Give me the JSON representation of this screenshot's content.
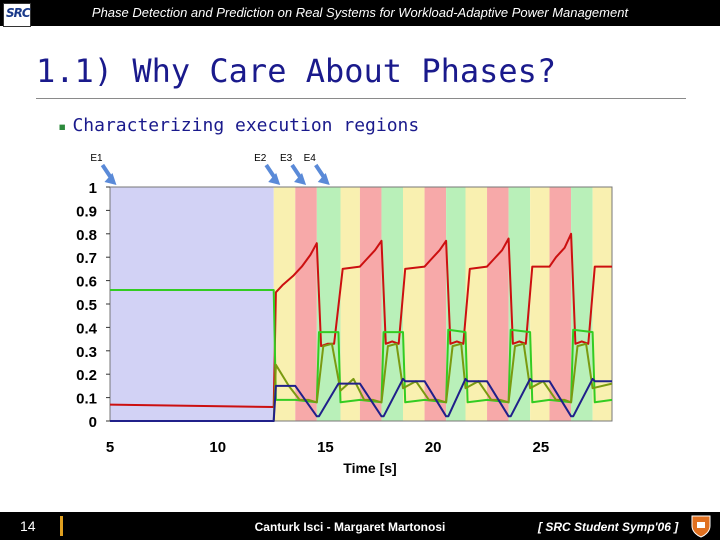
{
  "header": {
    "logo_text": "SRC",
    "title": "Phase Detection and Prediction on Real Systems for Workload-Adaptive Power Management"
  },
  "slide": {
    "title": "1.1) Why Care About Phases?",
    "bullet": "Characterizing execution regions"
  },
  "footer": {
    "slide_number": "14",
    "authors": "Canturk Isci - Margaret Martonosi",
    "venue": "[ SRC Student Symp'06 ]"
  },
  "colors": {
    "title_blue": "#1a1a8c",
    "bullet_green": "#2c8a3c",
    "red_line": "#cc1010",
    "green_line": "#33cc22",
    "olive_line": "#7a9a10",
    "navy_line": "#20208a",
    "blue_phase": "#d2d2f5",
    "red_phase": "#f7a9a9",
    "green_phase": "#b9f0b9",
    "yellow_phase": "#f9f0b0",
    "arrow_blue": "#5a8ad8"
  },
  "chart_data": {
    "type": "line",
    "title": "",
    "xlabel": "Time [s]",
    "ylabel": "",
    "xlim": [
      5,
      28.3
    ],
    "ylim": [
      0,
      1
    ],
    "xticks": [
      "5",
      "10",
      "15",
      "20",
      "25"
    ],
    "yticks": [
      "0",
      "0.1",
      "0.2",
      "0.3",
      "0.4",
      "0.5",
      "0.6",
      "0.7",
      "0.8",
      "0.9",
      "1"
    ],
    "phase_labels": [
      {
        "label": "E1",
        "x": 5.3
      },
      {
        "label": "E2",
        "x": 12.9
      },
      {
        "label": "E3",
        "x": 14.1
      },
      {
        "label": "E4",
        "x": 15.2
      }
    ],
    "phase_bands": [
      {
        "x0": 5.0,
        "x1": 12.6,
        "phase": "blue"
      },
      {
        "x0": 12.6,
        "x1": 13.6,
        "phase": "yellow"
      },
      {
        "x0": 13.6,
        "x1": 14.6,
        "phase": "red"
      },
      {
        "x0": 14.6,
        "x1": 15.7,
        "phase": "green"
      },
      {
        "x0": 15.7,
        "x1": 16.6,
        "phase": "yellow"
      },
      {
        "x0": 16.6,
        "x1": 17.6,
        "phase": "red"
      },
      {
        "x0": 17.6,
        "x1": 18.6,
        "phase": "green"
      },
      {
        "x0": 18.6,
        "x1": 19.6,
        "phase": "yellow"
      },
      {
        "x0": 19.6,
        "x1": 20.6,
        "phase": "red"
      },
      {
        "x0": 20.6,
        "x1": 21.5,
        "phase": "green"
      },
      {
        "x0": 21.5,
        "x1": 22.5,
        "phase": "yellow"
      },
      {
        "x0": 22.5,
        "x1": 23.5,
        "phase": "red"
      },
      {
        "x0": 23.5,
        "x1": 24.5,
        "phase": "green"
      },
      {
        "x0": 24.5,
        "x1": 25.4,
        "phase": "yellow"
      },
      {
        "x0": 25.4,
        "x1": 26.4,
        "phase": "red"
      },
      {
        "x0": 26.4,
        "x1": 27.4,
        "phase": "green"
      },
      {
        "x0": 27.4,
        "x1": 28.3,
        "phase": "yellow"
      }
    ],
    "series": [
      {
        "color": "red_line",
        "x": [
          5.0,
          12.6,
          12.7,
          13.0,
          13.5,
          13.9,
          14.3,
          14.6,
          14.8,
          15.1,
          15.4,
          15.8,
          16.6,
          16.9,
          17.3,
          17.6,
          17.8,
          18.1,
          18.4,
          18.7,
          19.6,
          19.9,
          20.3,
          20.6,
          20.8,
          21.1,
          21.4,
          21.7,
          22.5,
          22.8,
          23.2,
          23.5,
          23.7,
          24.0,
          24.3,
          24.6,
          25.4,
          25.7,
          26.1,
          26.4,
          26.6,
          26.9,
          27.2,
          27.5,
          28.3
        ],
        "y": [
          0.07,
          0.06,
          0.55,
          0.58,
          0.62,
          0.66,
          0.71,
          0.76,
          0.32,
          0.33,
          0.33,
          0.65,
          0.66,
          0.69,
          0.73,
          0.77,
          0.33,
          0.34,
          0.33,
          0.65,
          0.66,
          0.69,
          0.73,
          0.77,
          0.33,
          0.34,
          0.33,
          0.65,
          0.66,
          0.69,
          0.73,
          0.78,
          0.33,
          0.34,
          0.33,
          0.66,
          0.66,
          0.7,
          0.74,
          0.8,
          0.33,
          0.34,
          0.33,
          0.66,
          0.66
        ]
      },
      {
        "color": "green_line",
        "x": [
          5.0,
          12.6,
          12.7,
          13.6,
          14.6,
          14.7,
          15.6,
          15.7,
          16.6,
          17.6,
          17.7,
          18.6,
          18.7,
          19.6,
          20.6,
          20.7,
          21.5,
          21.6,
          22.5,
          23.5,
          23.6,
          24.5,
          24.6,
          25.4,
          26.4,
          26.5,
          27.4,
          27.5,
          28.3
        ],
        "y": [
          0.56,
          0.56,
          0.09,
          0.09,
          0.08,
          0.38,
          0.38,
          0.08,
          0.09,
          0.08,
          0.38,
          0.38,
          0.08,
          0.09,
          0.08,
          0.39,
          0.38,
          0.08,
          0.09,
          0.08,
          0.39,
          0.38,
          0.08,
          0.09,
          0.08,
          0.39,
          0.38,
          0.08,
          0.09
        ]
      },
      {
        "color": "olive_line",
        "x": [
          5.0,
          12.6,
          12.7,
          13.3,
          13.8,
          14.2,
          14.6,
          14.9,
          15.3,
          15.7,
          16.3,
          16.8,
          17.2,
          17.6,
          17.9,
          18.3,
          18.6,
          19.2,
          19.8,
          20.2,
          20.6,
          20.9,
          21.3,
          21.5,
          22.1,
          22.7,
          23.1,
          23.5,
          23.8,
          24.2,
          24.5,
          25.1,
          25.7,
          26.1,
          26.4,
          26.7,
          27.1,
          27.4,
          28.3
        ],
        "y": [
          0.0,
          0.0,
          0.24,
          0.15,
          0.09,
          0.09,
          0.08,
          0.32,
          0.33,
          0.13,
          0.18,
          0.09,
          0.09,
          0.08,
          0.32,
          0.33,
          0.14,
          0.17,
          0.09,
          0.09,
          0.08,
          0.32,
          0.33,
          0.14,
          0.17,
          0.09,
          0.09,
          0.08,
          0.32,
          0.33,
          0.14,
          0.17,
          0.09,
          0.09,
          0.08,
          0.32,
          0.33,
          0.14,
          0.16
        ]
      },
      {
        "color": "navy_line",
        "x": [
          5.0,
          12.6,
          12.7,
          13.6,
          14.6,
          14.7,
          15.6,
          15.7,
          16.6,
          17.6,
          17.7,
          18.6,
          18.7,
          19.6,
          20.6,
          20.7,
          21.5,
          21.6,
          22.5,
          23.5,
          23.6,
          24.5,
          24.6,
          25.4,
          26.4,
          26.5,
          27.4,
          27.5,
          28.3
        ],
        "y": [
          0.0,
          0.0,
          0.15,
          0.15,
          0.02,
          0.02,
          0.16,
          0.16,
          0.16,
          0.02,
          0.02,
          0.18,
          0.17,
          0.17,
          0.02,
          0.02,
          0.18,
          0.17,
          0.17,
          0.02,
          0.02,
          0.18,
          0.17,
          0.17,
          0.02,
          0.02,
          0.18,
          0.17,
          0.17
        ]
      }
    ]
  }
}
